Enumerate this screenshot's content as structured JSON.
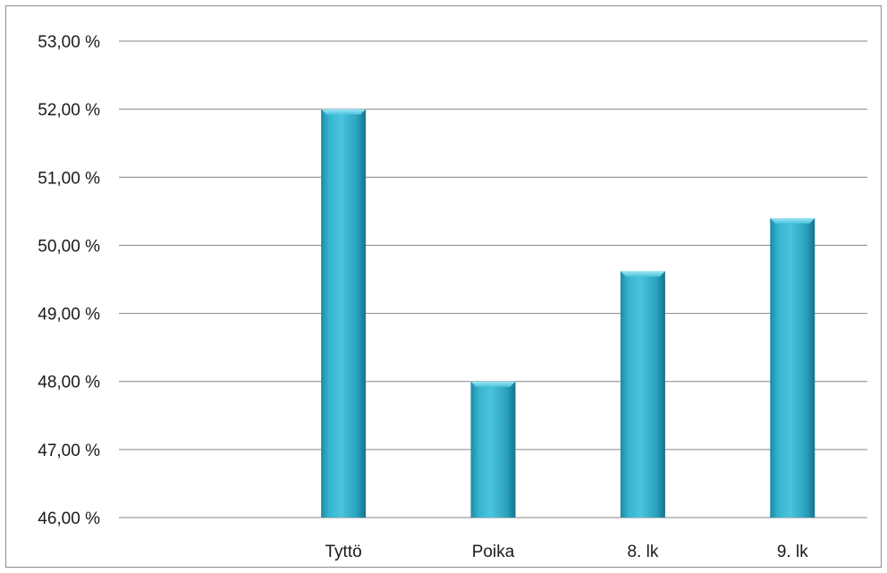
{
  "chart_data": {
    "type": "bar",
    "categories": [
      "",
      "Tyttö",
      "Poika",
      "8. lk",
      "9. lk"
    ],
    "values": [
      null,
      52.0,
      48.0,
      49.62,
      50.4
    ],
    "ylim": [
      46.0,
      53.0
    ],
    "yticks": [
      46,
      47,
      48,
      49,
      50,
      51,
      52,
      53
    ],
    "ytick_labels": [
      "46,00 %",
      "47,00 %",
      "48,00 %",
      "49,00 %",
      "50,00 %",
      "51,00 %",
      "52,00 %",
      "53,00 %"
    ],
    "grid": true,
    "legend": "none",
    "title": "",
    "xlabel": "",
    "ylabel": "",
    "colors": {
      "bar_light": "#4cc3dd",
      "bar_mid": "#2aa6c2",
      "bar_dark": "#1a7f98",
      "gridline": "#868686"
    }
  }
}
